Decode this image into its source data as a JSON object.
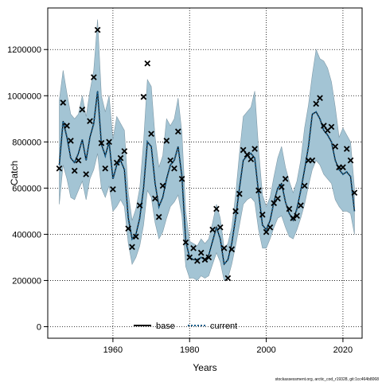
{
  "chart_data": {
    "type": "line",
    "title": "",
    "xlabel": "Years",
    "ylabel": "Catch",
    "xlim": [
      1943,
      2025
    ],
    "ylim": [
      -50000,
      1380000
    ],
    "x_ticks": [
      1960,
      1980,
      2000,
      2020
    ],
    "y_ticks": [
      0,
      200000,
      400000,
      600000,
      800000,
      1000000,
      1200000
    ],
    "y_tick_labels": [
      "0",
      "200000",
      "400000",
      "600000",
      "800000",
      "1000000",
      "1200000"
    ],
    "grid": true,
    "legend_position": "bottom",
    "legend": [
      "base",
      "current"
    ],
    "colors": {
      "band": "#a3c4d4",
      "band_edge": "#7f9aa8",
      "current": "#1a5f8c",
      "base": "#000000",
      "observed": "#000000",
      "grid": "#000000"
    },
    "years": [
      1946,
      1947,
      1948,
      1949,
      1950,
      1951,
      1952,
      1953,
      1954,
      1955,
      1956,
      1957,
      1958,
      1959,
      1960,
      1961,
      1962,
      1963,
      1964,
      1965,
      1966,
      1967,
      1968,
      1969,
      1970,
      1971,
      1972,
      1973,
      1974,
      1975,
      1976,
      1977,
      1978,
      1979,
      1980,
      1981,
      1982,
      1983,
      1984,
      1985,
      1986,
      1987,
      1988,
      1989,
      1990,
      1991,
      1992,
      1993,
      1994,
      1995,
      1996,
      1997,
      1998,
      1999,
      2000,
      2001,
      2002,
      2003,
      2004,
      2005,
      2006,
      2007,
      2008,
      2009,
      2010,
      2011,
      2012,
      2013,
      2014,
      2015,
      2016,
      2017,
      2018,
      2019,
      2020,
      2021,
      2022,
      2023
    ],
    "series": [
      {
        "name": "current",
        "style": "dotted",
        "values": [
          700000,
          890000,
          820000,
          730000,
          710000,
          750000,
          810000,
          720000,
          820000,
          880000,
          1020000,
          790000,
          740000,
          800000,
          640000,
          700000,
          720000,
          680000,
          470000,
          380000,
          400000,
          470000,
          600000,
          800000,
          780000,
          620000,
          520000,
          560000,
          640000,
          700000,
          720000,
          780000,
          650000,
          370000,
          300000,
          290000,
          290000,
          300000,
          290000,
          310000,
          370000,
          430000,
          380000,
          270000,
          290000,
          360000,
          470000,
          600000,
          720000,
          740000,
          750000,
          730000,
          580000,
          440000,
          420000,
          460000,
          540000,
          600000,
          620000,
          540000,
          490000,
          460000,
          510000,
          590000,
          680000,
          780000,
          920000,
          930000,
          900000,
          850000,
          830000,
          800000,
          720000,
          680000,
          660000,
          670000,
          650000,
          500000
        ]
      },
      {
        "name": "base",
        "style": "solid",
        "values": [
          700000,
          890000,
          820000,
          730000,
          710000,
          750000,
          810000,
          720000,
          820000,
          880000,
          1020000,
          790000,
          740000,
          800000,
          640000,
          700000,
          720000,
          680000,
          470000,
          380000,
          400000,
          470000,
          600000,
          800000,
          780000,
          620000,
          520000,
          560000,
          640000,
          700000,
          720000,
          780000,
          650000,
          370000,
          300000,
          290000,
          290000,
          300000,
          290000,
          310000,
          370000,
          430000,
          380000,
          270000,
          290000,
          360000,
          470000,
          600000,
          720000,
          740000,
          750000,
          730000,
          580000,
          440000,
          420000,
          460000,
          540000,
          600000,
          620000,
          540000,
          490000,
          460000,
          510000,
          590000,
          680000,
          780000,
          920000,
          930000,
          900000,
          850000,
          830000,
          800000,
          720000,
          680000,
          660000,
          670000,
          650000,
          500000
        ]
      }
    ],
    "band_upper": [
      980000,
      1110000,
      1010000,
      920000,
      900000,
      920000,
      1000000,
      910000,
      1020000,
      1110000,
      1330000,
      1000000,
      930000,
      1000000,
      810000,
      910000,
      880000,
      850000,
      580000,
      460000,
      510000,
      600000,
      800000,
      1070000,
      1040000,
      820000,
      690000,
      740000,
      900000,
      870000,
      900000,
      990000,
      840000,
      500000,
      370000,
      360000,
      350000,
      380000,
      360000,
      380000,
      450000,
      530000,
      470000,
      340000,
      360000,
      430000,
      570000,
      750000,
      910000,
      930000,
      950000,
      1020000,
      770000,
      570000,
      520000,
      560000,
      650000,
      730000,
      780000,
      690000,
      630000,
      580000,
      630000,
      720000,
      860000,
      960000,
      1090000,
      1200000,
      1160000,
      1150000,
      1120000,
      1060000,
      950000,
      820000,
      860000,
      830000,
      800000,
      600000
    ],
    "band_lower": [
      530000,
      700000,
      640000,
      560000,
      550000,
      590000,
      630000,
      550000,
      640000,
      680000,
      750000,
      600000,
      560000,
      610000,
      500000,
      520000,
      550000,
      520000,
      360000,
      270000,
      300000,
      350000,
      440000,
      590000,
      560000,
      450000,
      380000,
      410000,
      470000,
      520000,
      540000,
      570000,
      480000,
      260000,
      210000,
      210000,
      200000,
      220000,
      210000,
      220000,
      270000,
      320000,
      280000,
      200000,
      210000,
      270000,
      350000,
      440000,
      530000,
      550000,
      560000,
      540000,
      420000,
      340000,
      340000,
      380000,
      430000,
      470000,
      480000,
      430000,
      390000,
      380000,
      420000,
      470000,
      530000,
      610000,
      680000,
      720000,
      700000,
      660000,
      640000,
      620000,
      550000,
      520000,
      500000,
      500000,
      490000,
      400000
    ],
    "observed": [
      [
        1946,
        685000
      ],
      [
        1947,
        970000
      ],
      [
        1948,
        870000
      ],
      [
        1949,
        805000
      ],
      [
        1950,
        675000
      ],
      [
        1951,
        720000
      ],
      [
        1952,
        940000
      ],
      [
        1953,
        660000
      ],
      [
        1954,
        890000
      ],
      [
        1955,
        1080000
      ],
      [
        1956,
        1285000
      ],
      [
        1957,
        795000
      ],
      [
        1958,
        685000
      ],
      [
        1959,
        800000
      ],
      [
        1960,
        595000
      ],
      [
        1961,
        710000
      ],
      [
        1962,
        730000
      ],
      [
        1963,
        760000
      ],
      [
        1964,
        425000
      ],
      [
        1965,
        345000
      ],
      [
        1966,
        390000
      ],
      [
        1967,
        525000
      ],
      [
        1968,
        995000
      ],
      [
        1969,
        1140000
      ],
      [
        1970,
        835000
      ],
      [
        1971,
        555000
      ],
      [
        1972,
        475000
      ],
      [
        1973,
        610000
      ],
      [
        1974,
        805000
      ],
      [
        1975,
        720000
      ],
      [
        1976,
        685000
      ],
      [
        1977,
        845000
      ],
      [
        1978,
        640000
      ],
      [
        1979,
        365000
      ],
      [
        1980,
        300000
      ],
      [
        1981,
        340000
      ],
      [
        1982,
        285000
      ],
      [
        1983,
        320000
      ],
      [
        1984,
        290000
      ],
      [
        1985,
        300000
      ],
      [
        1986,
        420000
      ],
      [
        1987,
        510000
      ],
      [
        1988,
        430000
      ],
      [
        1989,
        340000
      ],
      [
        1990,
        210000
      ],
      [
        1991,
        335000
      ],
      [
        1992,
        500000
      ],
      [
        1993,
        575000
      ],
      [
        1994,
        765000
      ],
      [
        1995,
        745000
      ],
      [
        1996,
        725000
      ],
      [
        1997,
        770000
      ],
      [
        1998,
        590000
      ],
      [
        1999,
        485000
      ],
      [
        2000,
        410000
      ],
      [
        2001,
        430000
      ],
      [
        2002,
        535000
      ],
      [
        2003,
        555000
      ],
      [
        2004,
        605000
      ],
      [
        2005,
        640000
      ],
      [
        2006,
        510000
      ],
      [
        2007,
        470000
      ],
      [
        2008,
        480000
      ],
      [
        2009,
        525000
      ],
      [
        2010,
        610000
      ],
      [
        2011,
        720000
      ],
      [
        2012,
        720000
      ],
      [
        2013,
        965000
      ],
      [
        2014,
        990000
      ],
      [
        2015,
        870000
      ],
      [
        2016,
        850000
      ],
      [
        2017,
        865000
      ],
      [
        2018,
        780000
      ],
      [
        2019,
        690000
      ],
      [
        2020,
        690000
      ],
      [
        2021,
        770000
      ],
      [
        2022,
        720000
      ],
      [
        2023,
        580000
      ]
    ]
  },
  "footer": "stockassessment.org, arctic_cod_r19328, git:1cc464b8068"
}
